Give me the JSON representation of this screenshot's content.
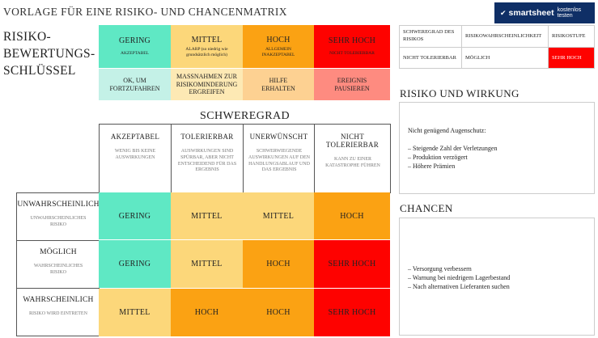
{
  "title": "VORLAGE FÜR EINE RISIKO- UND CHANCENMATRIX",
  "logo": {
    "brand": "smartsheet",
    "cta": "kostenlos testen",
    "bg": "#0f2f66"
  },
  "key_title": [
    "RISIKO-",
    "BEWERTUNGS-",
    "SCHLÜSSEL"
  ],
  "key": [
    {
      "label": "GERING",
      "sub": "AKZEPTABEL",
      "action": "OK, UM FORTZUFAHREN"
    },
    {
      "label": "MITTEL",
      "sub": "ALARP (so niedrig wie grundsätzlich möglich)",
      "action": "MASSNAHMEN ZUR RISIKOMINDERUNG ERGREIFEN"
    },
    {
      "label": "HOCH",
      "sub": "ALLGEMEIN INAKZEPTABEL",
      "action": "HILFE ERHALTEN"
    },
    {
      "label": "SEHR HOCH",
      "sub": "NICHT TOLERIERBAR",
      "action": "EREIGNIS PAUSIEREN"
    }
  ],
  "summary": {
    "headers": [
      "SCHWEREGRAD DES RISIKOS",
      "RISIKOWAHRSCHEINLICHKEIT",
      "RISIKOSTUFE"
    ],
    "values": [
      "NICHT TOLERIERBAR",
      "MÖGLICH",
      "SEHR HOCH"
    ]
  },
  "severity_title": "SCHWEREGRAD",
  "columns": [
    {
      "title": "AKZEPTABEL",
      "desc": "WENIG BIS KEINE AUSWIRKUNGEN"
    },
    {
      "title": "TOLERIERBAR",
      "desc": "AUSWIRKUNGEN SIND SPÜRBAR, ABER NICHT ENTSCHEIDEND FÜR DAS ERGEBNIS"
    },
    {
      "title": "UNERWÜNSCHT",
      "desc": "SCHWERWIEGENDE AUSWIRKUNGEN AUF DEN HANDLUNGSABLAUF UND DAS ERGEBNIS"
    },
    {
      "title": "NICHT TOLERIERBAR",
      "desc": "KANN ZU EINER KATASTROPHE FÜHREN"
    }
  ],
  "rows": [
    {
      "title": "UNWAHRSCHEINLICH",
      "desc": "UNWAHRSCHEINLICHES RISIKO",
      "cells": [
        "GERING",
        "MITTEL",
        "MITTEL",
        "HOCH"
      ]
    },
    {
      "title": "MÖGLICH",
      "desc": "WAHRSCHEINLICHES RISIKO",
      "cells": [
        "GERING",
        "MITTEL",
        "HOCH",
        "SEHR HOCH"
      ]
    },
    {
      "title": "WAHRSCHEINLICH",
      "desc": "RISIKO WIRD EINTRETEN",
      "cells": [
        "MITTEL",
        "HOCH",
        "HOCH",
        "SEHR HOCH"
      ]
    }
  ],
  "risk_panel": {
    "title": "RISIKO UND WIRKUNG",
    "lines": [
      "Nicht genügend Augenschutz:",
      "",
      "– Steigende Zahl der Verletzungen",
      "– Produktion verzögert",
      "– Höhere Prämien"
    ]
  },
  "chances_panel": {
    "title": "CHANCEN",
    "lines": [
      "– Versorgung verbessern",
      "– Warnung bei niedrigem Lagerbestand",
      "– Nach alternativen Lieferanten suchen"
    ]
  }
}
